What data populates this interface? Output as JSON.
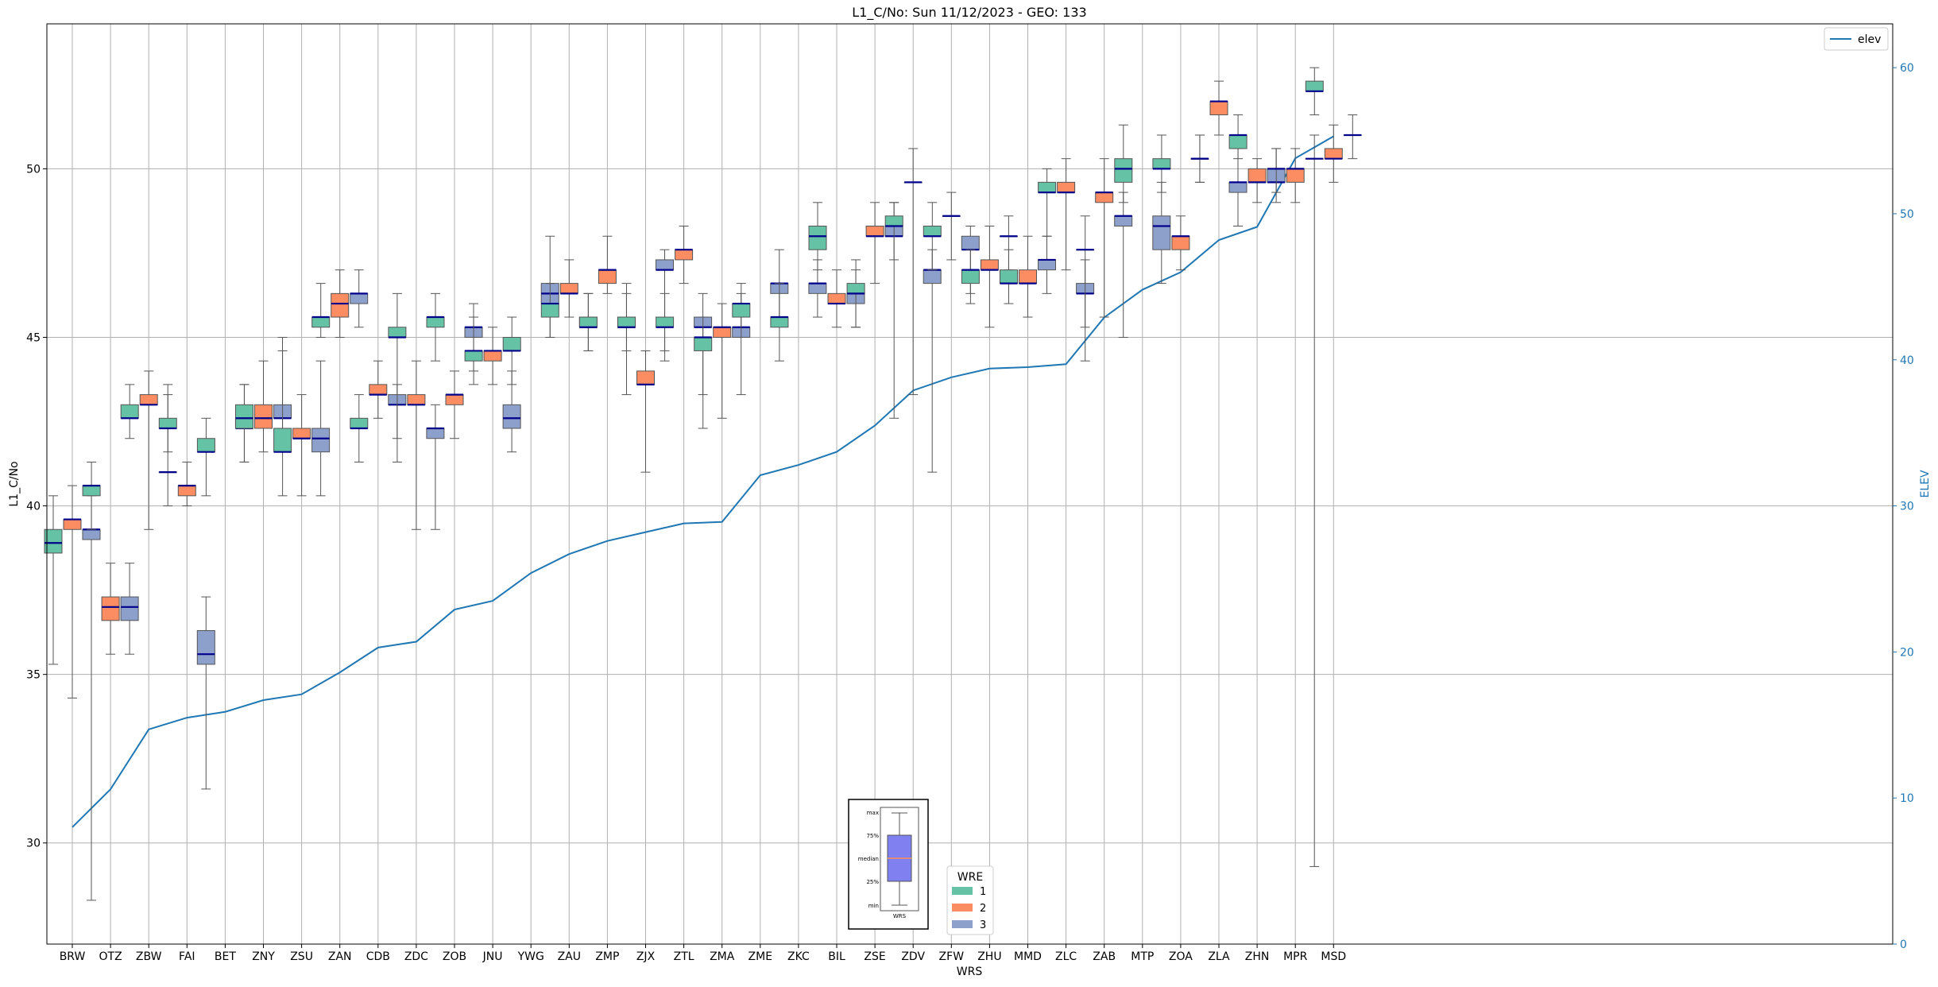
{
  "chart_data": {
    "type": "boxplot",
    "title": "L1_C/No: Sun 11/12/2023 - GEO: 133",
    "xlabel": "WRS",
    "ylabel": "L1_C/No",
    "ylabel_right": "ELEV",
    "ylim": [
      27.0,
      54.3
    ],
    "ylim_right": [
      0,
      63
    ],
    "yticks": [
      30,
      35,
      40,
      45,
      50
    ],
    "yticks_right": [
      0,
      10,
      20,
      30,
      40,
      50,
      60
    ],
    "grid": true,
    "categories": [
      "BRW",
      "OTZ",
      "ZBW",
      "FAI",
      "BET",
      "ZNY",
      "ZSU",
      "ZAN",
      "CDB",
      "ZDC",
      "ZOB",
      "JNU",
      "YWG",
      "ZAU",
      "ZMP",
      "ZJX",
      "ZTL",
      "ZMA",
      "ZME",
      "ZKC",
      "BIL",
      "ZSE",
      "ZDV",
      "ZFW",
      "ZHU",
      "MMD",
      "ZLC",
      "ZAB",
      "MTP",
      "ZOA",
      "ZLA",
      "ZHN",
      "MPR",
      "MSD"
    ],
    "wre_legend_title": "WRE",
    "wre_labels": [
      "1",
      "2",
      "3"
    ],
    "wre_colors": {
      "1": "#66c2a5",
      "2": "#fc8d62",
      "3": "#8da0cb"
    },
    "median_color": "#00008b",
    "elev_series": {
      "name": "elev",
      "color": "#1f77b4",
      "values": [
        8.0,
        10.6,
        14.7,
        15.5,
        15.9,
        16.7,
        17.1,
        18.6,
        20.3,
        20.7,
        22.9,
        23.5,
        25.4,
        26.7,
        27.6,
        28.2,
        28.8,
        28.9,
        32.1,
        32.8,
        33.7,
        35.5,
        37.9,
        38.8,
        39.4,
        39.5,
        39.7,
        42.9,
        44.8,
        46.0,
        48.2,
        49.1,
        53.8,
        55.3
      ]
    },
    "boxes": [
      {
        "wrs": "BRW",
        "wre": 1,
        "min": 35.3,
        "q1": 38.6,
        "median": 38.9,
        "q3": 39.3,
        "max": 40.3
      },
      {
        "wrs": "BRW",
        "wre": 2,
        "min": 34.3,
        "q1": 39.3,
        "median": 39.6,
        "q3": 39.6,
        "max": 40.6
      },
      {
        "wrs": "BRW",
        "wre": 3,
        "min": 28.3,
        "q1": 39.0,
        "median": 39.3,
        "q3": 39.3,
        "max": 40.3
      },
      {
        "wrs": "OTZ",
        "wre": 1,
        "min": 39.3,
        "q1": 40.3,
        "median": 40.6,
        "q3": 40.6,
        "max": 41.3
      },
      {
        "wrs": "OTZ",
        "wre": 2,
        "min": 35.6,
        "q1": 36.6,
        "median": 37.0,
        "q3": 37.3,
        "max": 38.3
      },
      {
        "wrs": "OTZ",
        "wre": 3,
        "min": 35.6,
        "q1": 36.6,
        "median": 37.0,
        "q3": 37.3,
        "max": 38.3
      },
      {
        "wrs": "ZBW",
        "wre": 1,
        "min": 42.0,
        "q1": 42.6,
        "median": 42.6,
        "q3": 43.0,
        "max": 43.6
      },
      {
        "wrs": "ZBW",
        "wre": 2,
        "min": 39.3,
        "q1": 43.0,
        "median": 43.0,
        "q3": 43.3,
        "max": 44.0
      },
      {
        "wrs": "ZBW",
        "wre": 3,
        "min": 40.0,
        "q1": 41.0,
        "median": 41.0,
        "q3": 41.0,
        "max": 43.6
      },
      {
        "wrs": "FAI",
        "wre": 1,
        "min": 41.6,
        "q1": 42.3,
        "median": 42.3,
        "q3": 42.6,
        "max": 43.3
      },
      {
        "wrs": "FAI",
        "wre": 2,
        "min": 40.0,
        "q1": 40.3,
        "median": 40.6,
        "q3": 40.6,
        "max": 41.3
      },
      {
        "wrs": "FAI",
        "wre": 3,
        "min": 31.6,
        "q1": 35.3,
        "median": 35.6,
        "q3": 36.3,
        "max": 37.3
      },
      {
        "wrs": "BET",
        "wre": 1,
        "min": 40.3,
        "q1": 41.6,
        "median": 41.6,
        "q3": 42.0,
        "max": 42.6
      },
      {
        "wrs": "BET",
        "wre": 3,
        "min": 41.3,
        "q1": 42.3,
        "median": 42.3,
        "q3": 42.6,
        "max": 43.6
      },
      {
        "wrs": "ZNY",
        "wre": 1,
        "min": 41.3,
        "q1": 42.3,
        "median": 42.6,
        "q3": 43.0,
        "max": 43.6
      },
      {
        "wrs": "ZNY",
        "wre": 2,
        "min": 41.6,
        "q1": 42.3,
        "median": 42.6,
        "q3": 43.0,
        "max": 44.3
      },
      {
        "wrs": "ZNY",
        "wre": 3,
        "min": 42.0,
        "q1": 42.6,
        "median": 42.6,
        "q3": 43.0,
        "max": 45.0
      },
      {
        "wrs": "ZSU",
        "wre": 1,
        "min": 40.3,
        "q1": 41.6,
        "median": 41.6,
        "q3": 42.3,
        "max": 44.6
      },
      {
        "wrs": "ZSU",
        "wre": 2,
        "min": 40.3,
        "q1": 42.0,
        "median": 42.0,
        "q3": 42.3,
        "max": 43.3
      },
      {
        "wrs": "ZSU",
        "wre": 3,
        "min": 40.3,
        "q1": 41.6,
        "median": 42.0,
        "q3": 42.3,
        "max": 44.3
      },
      {
        "wrs": "ZAN",
        "wre": 1,
        "min": 45.0,
        "q1": 45.3,
        "median": 45.6,
        "q3": 45.6,
        "max": 46.6
      },
      {
        "wrs": "ZAN",
        "wre": 2,
        "min": 45.0,
        "q1": 45.6,
        "median": 46.0,
        "q3": 46.3,
        "max": 47.0
      },
      {
        "wrs": "ZAN",
        "wre": 3,
        "min": 45.3,
        "q1": 46.0,
        "median": 46.3,
        "q3": 46.3,
        "max": 47.0
      },
      {
        "wrs": "CDB",
        "wre": 1,
        "min": 41.3,
        "q1": 42.3,
        "median": 42.3,
        "q3": 42.6,
        "max": 43.3
      },
      {
        "wrs": "CDB",
        "wre": 2,
        "min": 42.6,
        "q1": 43.3,
        "median": 43.3,
        "q3": 43.6,
        "max": 44.3
      },
      {
        "wrs": "CDB",
        "wre": 3,
        "min": 42.0,
        "q1": 43.0,
        "median": 43.0,
        "q3": 43.3,
        "max": 43.6
      },
      {
        "wrs": "ZDC",
        "wre": 1,
        "min": 41.3,
        "q1": 45.0,
        "median": 45.0,
        "q3": 45.3,
        "max": 46.3
      },
      {
        "wrs": "ZDC",
        "wre": 2,
        "min": 39.3,
        "q1": 43.0,
        "median": 43.0,
        "q3": 43.3,
        "max": 44.3
      },
      {
        "wrs": "ZDC",
        "wre": 3,
        "min": 39.3,
        "q1": 42.0,
        "median": 42.3,
        "q3": 42.3,
        "max": 43.0
      },
      {
        "wrs": "ZOB",
        "wre": 1,
        "min": 44.3,
        "q1": 45.3,
        "median": 45.6,
        "q3": 45.6,
        "max": 46.3
      },
      {
        "wrs": "ZOB",
        "wre": 2,
        "min": 42.0,
        "q1": 43.0,
        "median": 43.3,
        "q3": 43.3,
        "max": 44.0
      },
      {
        "wrs": "ZOB",
        "wre": 3,
        "min": 44.0,
        "q1": 45.0,
        "median": 45.3,
        "q3": 45.3,
        "max": 46.0
      },
      {
        "wrs": "JNU",
        "wre": 1,
        "min": 43.6,
        "q1": 44.3,
        "median": 44.6,
        "q3": 44.6,
        "max": 45.6
      },
      {
        "wrs": "JNU",
        "wre": 2,
        "min": 43.6,
        "q1": 44.3,
        "median": 44.6,
        "q3": 44.6,
        "max": 45.3
      },
      {
        "wrs": "JNU",
        "wre": 3,
        "min": 41.6,
        "q1": 42.3,
        "median": 42.6,
        "q3": 43.0,
        "max": 44.0
      },
      {
        "wrs": "YWG",
        "wre": 1,
        "min": 43.6,
        "q1": 44.6,
        "median": 44.6,
        "q3": 45.0,
        "max": 45.6
      },
      {
        "wrs": "YWG",
        "wre": 3,
        "min": 45.0,
        "q1": 46.0,
        "median": 46.3,
        "q3": 46.6,
        "max": 48.0
      },
      {
        "wrs": "ZAU",
        "wre": 1,
        "min": 45.0,
        "q1": 45.6,
        "median": 46.0,
        "q3": 46.0,
        "max": 46.6
      },
      {
        "wrs": "ZAU",
        "wre": 2,
        "min": 45.6,
        "q1": 46.3,
        "median": 46.3,
        "q3": 46.6,
        "max": 47.3
      },
      {
        "wrs": "ZAU",
        "wre": 3,
        "min": 44.6,
        "q1": 45.3,
        "median": 45.3,
        "q3": 45.6,
        "max": 46.3
      },
      {
        "wrs": "ZMP",
        "wre": 1,
        "min": 44.6,
        "q1": 45.3,
        "median": 45.3,
        "q3": 45.6,
        "max": 46.3
      },
      {
        "wrs": "ZMP",
        "wre": 2,
        "min": 46.3,
        "q1": 46.6,
        "median": 47.0,
        "q3": 47.0,
        "max": 48.0
      },
      {
        "wrs": "ZMP",
        "wre": 3,
        "min": 44.6,
        "q1": 45.3,
        "median": 45.3,
        "q3": 45.6,
        "max": 46.3
      },
      {
        "wrs": "ZJX",
        "wre": 1,
        "min": 43.3,
        "q1": 45.3,
        "median": 45.3,
        "q3": 45.6,
        "max": 46.6
      },
      {
        "wrs": "ZJX",
        "wre": 2,
        "min": 41.0,
        "q1": 43.6,
        "median": 43.6,
        "q3": 44.0,
        "max": 44.6
      },
      {
        "wrs": "ZJX",
        "wre": 3,
        "min": 44.6,
        "q1": 47.0,
        "median": 47.0,
        "q3": 47.3,
        "max": 47.6
      },
      {
        "wrs": "ZTL",
        "wre": 1,
        "min": 44.3,
        "q1": 45.3,
        "median": 45.3,
        "q3": 45.6,
        "max": 46.3
      },
      {
        "wrs": "ZTL",
        "wre": 2,
        "min": 46.6,
        "q1": 47.3,
        "median": 47.6,
        "q3": 47.6,
        "max": 48.3
      },
      {
        "wrs": "ZTL",
        "wre": 3,
        "min": 43.3,
        "q1": 45.3,
        "median": 45.3,
        "q3": 45.6,
        "max": 46.3
      },
      {
        "wrs": "ZMA",
        "wre": 1,
        "min": 42.3,
        "q1": 44.6,
        "median": 45.0,
        "q3": 45.0,
        "max": 45.6
      },
      {
        "wrs": "ZMA",
        "wre": 2,
        "min": 42.6,
        "q1": 45.0,
        "median": 45.3,
        "q3": 45.3,
        "max": 46.0
      },
      {
        "wrs": "ZMA",
        "wre": 3,
        "min": 43.3,
        "q1": 45.0,
        "median": 45.3,
        "q3": 45.3,
        "max": 46.3
      },
      {
        "wrs": "ZME",
        "wre": 1,
        "min": 45.0,
        "q1": 45.6,
        "median": 46.0,
        "q3": 46.0,
        "max": 46.6
      },
      {
        "wrs": "ZME",
        "wre": 3,
        "min": 45.6,
        "q1": 46.3,
        "median": 46.6,
        "q3": 46.6,
        "max": 47.6
      },
      {
        "wrs": "ZKC",
        "wre": 1,
        "min": 44.3,
        "q1": 45.3,
        "median": 45.6,
        "q3": 45.6,
        "max": 46.6
      },
      {
        "wrs": "ZKC",
        "wre": 3,
        "min": 45.6,
        "q1": 46.3,
        "median": 46.6,
        "q3": 46.6,
        "max": 47.3
      },
      {
        "wrs": "BIL",
        "wre": 1,
        "min": 47.0,
        "q1": 47.6,
        "median": 48.0,
        "q3": 48.3,
        "max": 49.0
      },
      {
        "wrs": "BIL",
        "wre": 2,
        "min": 45.3,
        "q1": 46.0,
        "median": 46.0,
        "q3": 46.3,
        "max": 47.0
      },
      {
        "wrs": "BIL",
        "wre": 3,
        "min": 45.3,
        "q1": 46.0,
        "median": 46.3,
        "q3": 46.3,
        "max": 47.0
      },
      {
        "wrs": "ZSE",
        "wre": 1,
        "min": 45.3,
        "q1": 46.3,
        "median": 46.3,
        "q3": 46.6,
        "max": 47.3
      },
      {
        "wrs": "ZSE",
        "wre": 2,
        "min": 46.6,
        "q1": 48.0,
        "median": 48.0,
        "q3": 48.3,
        "max": 49.0
      },
      {
        "wrs": "ZSE",
        "wre": 3,
        "min": 47.3,
        "q1": 48.0,
        "median": 48.0,
        "q3": 48.3,
        "max": 49.0
      },
      {
        "wrs": "ZDV",
        "wre": 1,
        "min": 42.6,
        "q1": 48.3,
        "median": 48.3,
        "q3": 48.6,
        "max": 49.0
      },
      {
        "wrs": "ZDV",
        "wre": 2,
        "min": 43.3,
        "q1": 49.6,
        "median": 49.6,
        "q3": 49.6,
        "max": 50.6
      },
      {
        "wrs": "ZDV",
        "wre": 3,
        "min": 41.0,
        "q1": 46.6,
        "median": 47.0,
        "q3": 47.0,
        "max": 47.6
      },
      {
        "wrs": "ZFW",
        "wre": 1,
        "min": 47.0,
        "q1": 48.0,
        "median": 48.0,
        "q3": 48.3,
        "max": 49.0
      },
      {
        "wrs": "ZFW",
        "wre": 2,
        "min": 47.3,
        "q1": 48.6,
        "median": 48.6,
        "q3": 48.6,
        "max": 49.3
      },
      {
        "wrs": "ZFW",
        "wre": 3,
        "min": 46.3,
        "q1": 47.6,
        "median": 47.6,
        "q3": 48.0,
        "max": 48.3
      },
      {
        "wrs": "ZHU",
        "wre": 1,
        "min": 46.0,
        "q1": 46.6,
        "median": 47.0,
        "q3": 47.0,
        "max": 47.6
      },
      {
        "wrs": "ZHU",
        "wre": 2,
        "min": 45.3,
        "q1": 47.0,
        "median": 47.0,
        "q3": 47.3,
        "max": 48.3
      },
      {
        "wrs": "ZHU",
        "wre": 3,
        "min": 47.0,
        "q1": 48.0,
        "median": 48.0,
        "q3": 48.0,
        "max": 48.6
      },
      {
        "wrs": "MMD",
        "wre": 1,
        "min": 46.0,
        "q1": 46.6,
        "median": 46.6,
        "q3": 47.0,
        "max": 47.6
      },
      {
        "wrs": "MMD",
        "wre": 2,
        "min": 45.6,
        "q1": 46.6,
        "median": 46.6,
        "q3": 47.0,
        "max": 48.0
      },
      {
        "wrs": "MMD",
        "wre": 3,
        "min": 46.3,
        "q1": 47.0,
        "median": 47.3,
        "q3": 47.3,
        "max": 48.0
      },
      {
        "wrs": "ZLC",
        "wre": 1,
        "min": 48.0,
        "q1": 49.3,
        "median": 49.3,
        "q3": 49.6,
        "max": 50.0
      },
      {
        "wrs": "ZLC",
        "wre": 2,
        "min": 47.0,
        "q1": 49.3,
        "median": 49.3,
        "q3": 49.6,
        "max": 50.3
      },
      {
        "wrs": "ZLC",
        "wre": 3,
        "min": 45.3,
        "q1": 46.3,
        "median": 46.3,
        "q3": 46.6,
        "max": 47.3
      },
      {
        "wrs": "ZAB",
        "wre": 1,
        "min": 44.3,
        "q1": 47.6,
        "median": 47.6,
        "q3": 47.6,
        "max": 48.6
      },
      {
        "wrs": "ZAB",
        "wre": 2,
        "min": 45.6,
        "q1": 49.0,
        "median": 49.3,
        "q3": 49.3,
        "max": 50.3
      },
      {
        "wrs": "ZAB",
        "wre": 3,
        "min": 45.0,
        "q1": 48.3,
        "median": 48.6,
        "q3": 48.6,
        "max": 49.3
      },
      {
        "wrs": "MTP",
        "wre": 1,
        "min": 49.0,
        "q1": 49.6,
        "median": 50.0,
        "q3": 50.3,
        "max": 51.3
      },
      {
        "wrs": "MTP",
        "wre": 3,
        "min": 46.6,
        "q1": 47.6,
        "median": 48.3,
        "q3": 48.6,
        "max": 49.6
      },
      {
        "wrs": "ZOA",
        "wre": 1,
        "min": 49.3,
        "q1": 50.0,
        "median": 50.0,
        "q3": 50.3,
        "max": 51.0
      },
      {
        "wrs": "ZOA",
        "wre": 2,
        "min": 47.0,
        "q1": 47.6,
        "median": 48.0,
        "q3": 48.0,
        "max": 48.6
      },
      {
        "wrs": "ZOA",
        "wre": 3,
        "min": 49.6,
        "q1": 50.3,
        "median": 50.3,
        "q3": 50.3,
        "max": 51.0
      },
      {
        "wrs": "ZLA",
        "wre": 1,
        "min": 49.6,
        "q1": 50.3,
        "median": 50.3,
        "q3": 50.3,
        "max": 51.0
      },
      {
        "wrs": "ZLA",
        "wre": 2,
        "min": 51.0,
        "q1": 51.6,
        "median": 52.0,
        "q3": 52.0,
        "max": 52.6
      },
      {
        "wrs": "ZLA",
        "wre": 3,
        "min": 48.3,
        "q1": 49.3,
        "median": 49.6,
        "q3": 49.6,
        "max": 50.6
      },
      {
        "wrs": "ZHN",
        "wre": 1,
        "min": 50.3,
        "q1": 50.6,
        "median": 51.0,
        "q3": 51.0,
        "max": 51.6
      },
      {
        "wrs": "ZHN",
        "wre": 2,
        "min": 49.0,
        "q1": 49.6,
        "median": 49.6,
        "q3": 50.0,
        "max": 50.3
      },
      {
        "wrs": "ZHN",
        "wre": 3,
        "min": 49.0,
        "q1": 49.6,
        "median": 49.6,
        "q3": 50.0,
        "max": 50.6
      },
      {
        "wrs": "MPR",
        "wre": 1,
        "min": 49.3,
        "q1": 50.0,
        "median": 50.0,
        "q3": 50.0,
        "max": 50.6
      },
      {
        "wrs": "MPR",
        "wre": 2,
        "min": 49.0,
        "q1": 49.6,
        "median": 50.0,
        "q3": 50.0,
        "max": 50.6
      },
      {
        "wrs": "MPR",
        "wre": 3,
        "min": 29.3,
        "q1": 50.3,
        "median": 50.3,
        "q3": 50.3,
        "max": 51.0
      },
      {
        "wrs": "MSD",
        "wre": 1,
        "min": 51.6,
        "q1": 52.3,
        "median": 52.3,
        "q3": 52.6,
        "max": 53.0
      },
      {
        "wrs": "MSD",
        "wre": 2,
        "min": 49.6,
        "q1": 50.3,
        "median": 50.3,
        "q3": 50.6,
        "max": 51.3
      },
      {
        "wrs": "MSD",
        "wre": 3,
        "min": 50.3,
        "q1": 51.0,
        "median": 51.0,
        "q3": 51.0,
        "max": 51.6
      }
    ],
    "legend_elev": "elev",
    "inset_key": {
      "labels": [
        "max",
        "75%",
        "median",
        "25%",
        "min"
      ],
      "xlabel": "WRS",
      "box_color": "#8080f0",
      "median_color": "#fc8d62"
    }
  }
}
